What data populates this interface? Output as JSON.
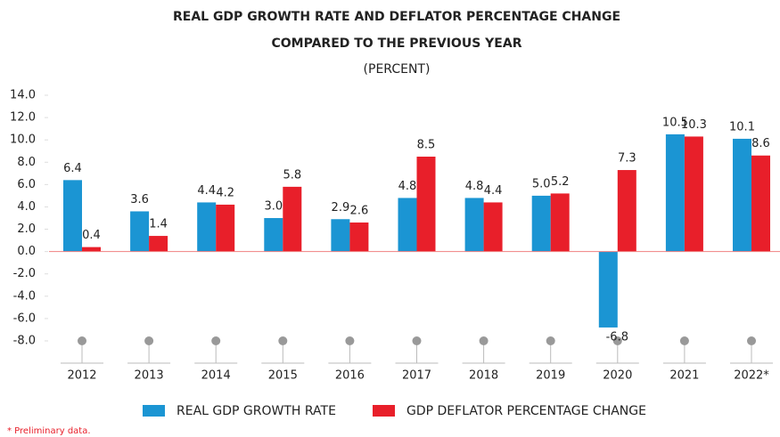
{
  "chart_data": {
    "type": "bar",
    "title": "REAL GDP GROWTH RATE AND DEFLATOR PERCENTAGE CHANGE",
    "subtitle": "COMPARED TO THE PREVIOUS YEAR",
    "unit": "(PERCENT)",
    "categories": [
      "2012",
      "2013",
      "2014",
      "2015",
      "2016",
      "2017",
      "2018",
      "2019",
      "2020",
      "2021",
      "2022*"
    ],
    "series": [
      {
        "name": "REAL GDP GROWTH RATE",
        "color": "#1b95d3",
        "values": [
          6.4,
          3.6,
          4.4,
          3.0,
          2.9,
          4.8,
          4.8,
          5.0,
          -6.8,
          10.5,
          10.1
        ],
        "value_labels": [
          "6.4",
          "3.6",
          "4.4",
          "3.0",
          "2.9",
          "4.8",
          "4.8",
          "5.0",
          "-6.8",
          "10.5",
          "10.1"
        ]
      },
      {
        "name": "GDP DEFLATOR PERCENTAGE CHANGE",
        "color": "#e81f2a",
        "values": [
          0.4,
          1.4,
          4.2,
          5.8,
          2.6,
          8.5,
          4.4,
          5.2,
          7.3,
          10.3,
          8.6
        ],
        "value_labels": [
          "0.4",
          "1.4",
          "4.2",
          "5.8",
          "2.6",
          "8.5",
          "4.4",
          "5.2",
          "7.3",
          "10.3",
          "8.6"
        ]
      }
    ],
    "ylim": [
      -8,
      14
    ],
    "yticks": [
      {
        "value": -8,
        "label": "-8.0"
      },
      {
        "value": -6,
        "label": "-6.0"
      },
      {
        "value": -4,
        "label": "-4.0"
      },
      {
        "value": -2,
        "label": "-2.0"
      },
      {
        "value": 0,
        "label": "0.0"
      },
      {
        "value": 2,
        "label": "2.0"
      },
      {
        "value": 4,
        "label": "4.0"
      },
      {
        "value": 6,
        "label": "6.0"
      },
      {
        "value": 8,
        "label": "8.0"
      },
      {
        "value": 10,
        "label": "10.0"
      },
      {
        "value": 12,
        "label": "12.0"
      },
      {
        "value": 14,
        "label": "14.0"
      }
    ],
    "footnote": "* Preliminary data."
  }
}
